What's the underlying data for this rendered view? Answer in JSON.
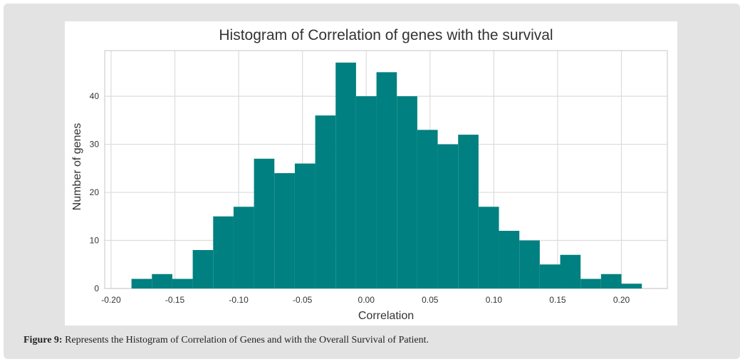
{
  "chart_data": {
    "type": "histogram",
    "title": "Histogram of Correlation of genes with the survival",
    "x_label": "Correlation",
    "y_label": "Number of genes",
    "bins": [
      -0.184,
      -0.168,
      -0.152,
      -0.136,
      -0.12,
      -0.104,
      -0.088,
      -0.072,
      -0.056,
      -0.04,
      -0.024,
      -0.008,
      0.008,
      0.024,
      0.04,
      0.056,
      0.072,
      0.088,
      0.104,
      0.12,
      0.136,
      0.152,
      0.168,
      0.184,
      0.2,
      0.216
    ],
    "values": [
      2,
      3,
      2,
      8,
      15,
      17,
      27,
      24,
      26,
      36,
      47,
      40,
      45,
      40,
      33,
      30,
      32,
      17,
      12,
      10,
      5,
      7,
      2,
      3,
      1
    ],
    "color": "#008080",
    "xlim": [
      -0.205,
      0.236
    ],
    "ylim": [
      0,
      49.5
    ],
    "xticks": [
      {
        "value": -0.2,
        "label": "-0.20"
      },
      {
        "value": -0.15,
        "label": "-0.15"
      },
      {
        "value": -0.1,
        "label": "-0.10"
      },
      {
        "value": -0.05,
        "label": "-0.05"
      },
      {
        "value": 0,
        "label": "0.00"
      },
      {
        "value": 0.05,
        "label": "0.05"
      },
      {
        "value": 0.1,
        "label": "0.10"
      },
      {
        "value": 0.15,
        "label": "0.15"
      },
      {
        "value": 0.2,
        "label": "0.20"
      }
    ],
    "yticks": [
      0,
      10,
      20,
      30,
      40
    ],
    "grid": true
  },
  "caption": {
    "label": "Figure 9:",
    "text": "Represents the Histogram of Correlation of Genes and with the Overall Survival of Patient."
  }
}
